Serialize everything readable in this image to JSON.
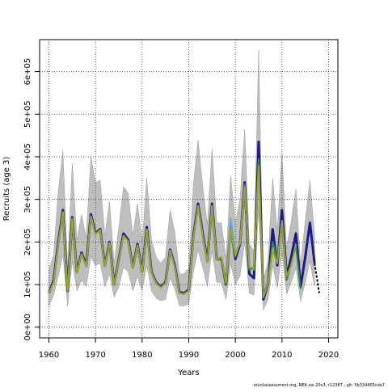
{
  "chart_data": {
    "type": "line",
    "title": "",
    "xlabel": "Years",
    "ylabel": "Recruits (age 3)",
    "footnote": "stockassessment.org,  NEA  sai  20v3,  r12387 ,  git: 5b334405cda7",
    "xlim": [
      1958,
      2022
    ],
    "ylim": [
      -25000,
      675000
    ],
    "x_ticks": [
      1960,
      1970,
      1980,
      1990,
      2000,
      2010,
      2020
    ],
    "x_tick_labels": [
      "1960",
      "1970",
      "1980",
      "1990",
      "2000",
      "2010",
      "2020"
    ],
    "y_ticks": [
      0,
      100000,
      200000,
      300000,
      400000,
      500000,
      600000
    ],
    "y_tick_labels": [
      "0e+00",
      "1e+05",
      "2e+05",
      "3e+05",
      "4e+05",
      "5e+05",
      "6e+05"
    ],
    "grid": true,
    "band_color": "#bebebe",
    "colors": {
      "estimate": "#1a1a8c",
      "retro_blue": "#6aa8e0",
      "retro_green": "#2e8b3a",
      "retro_olive": "#9aa52a",
      "forecast": "#000000"
    },
    "years": [
      1960,
      1961,
      1962,
      1963,
      1964,
      1965,
      1966,
      1967,
      1968,
      1969,
      1970,
      1971,
      1972,
      1973,
      1974,
      1975,
      1976,
      1977,
      1978,
      1979,
      1980,
      1981,
      1982,
      1983,
      1984,
      1985,
      1986,
      1987,
      1988,
      1989,
      1990,
      1991,
      1992,
      1993,
      1994,
      1995,
      1996,
      1997,
      1998,
      1999,
      2000,
      2001,
      2002,
      2003,
      2004,
      2005,
      2006,
      2007,
      2008,
      2009,
      2010,
      2011,
      2012,
      2013,
      2014,
      2015,
      2016,
      2017
    ],
    "estimate": [
      80000,
      110000,
      200000,
      275000,
      85000,
      258000,
      130000,
      175000,
      145000,
      265000,
      220000,
      230000,
      145000,
      200000,
      100000,
      160000,
      220000,
      205000,
      140000,
      195000,
      130000,
      235000,
      130000,
      105000,
      95000,
      105000,
      182000,
      145000,
      82000,
      80000,
      88000,
      215000,
      290000,
      220000,
      155000,
      290000,
      160000,
      160000,
      100000,
      240000,
      160000,
      195000,
      340000,
      125000,
      115000,
      435000,
      65000,
      100000,
      230000,
      145000,
      275000,
      120000,
      165000,
      220000,
      95000,
      165000,
      245000,
      150000
    ],
    "lower": [
      50000,
      75000,
      120000,
      170000,
      50000,
      155000,
      85000,
      110000,
      95000,
      165000,
      145000,
      150000,
      95000,
      125000,
      70000,
      95000,
      140000,
      130000,
      85000,
      120000,
      85000,
      145000,
      85000,
      68000,
      62000,
      65000,
      115000,
      90000,
      50000,
      50000,
      55000,
      130000,
      180000,
      140000,
      95000,
      180000,
      105000,
      105000,
      65000,
      150000,
      100000,
      120000,
      200000,
      80000,
      75000,
      280000,
      40000,
      65000,
      145000,
      92000,
      175000,
      78000,
      105000,
      140000,
      60000,
      105000,
      155000,
      95000
    ],
    "upper": [
      135000,
      170000,
      320000,
      415000,
      140000,
      385000,
      205000,
      265000,
      210000,
      400000,
      340000,
      345000,
      215000,
      295000,
      150000,
      235000,
      330000,
      315000,
      215000,
      290000,
      200000,
      350000,
      205000,
      165000,
      150000,
      165000,
      275000,
      225000,
      125000,
      125000,
      140000,
      335000,
      440000,
      330000,
      240000,
      420000,
      245000,
      245000,
      160000,
      355000,
      245000,
      300000,
      465000,
      195000,
      180000,
      650000,
      110000,
      155000,
      350000,
      225000,
      410000,
      185000,
      250000,
      325000,
      145000,
      250000,
      345000,
      215000
    ],
    "series": [
      {
        "name": "",
        "values": [
          80000,
          105000,
          195000,
          270000,
          85000,
          255000,
          128000,
          172000,
          142000,
          260000,
          218000,
          228000,
          143000,
          198000,
          98000,
          158000,
          215000,
          202000,
          138000,
          192000,
          128000,
          230000,
          128000,
          103000,
          93000,
          103000,
          180000,
          142000,
          80000,
          78000,
          86000,
          210000,
          285000,
          215000,
          152000,
          285000,
          158000,
          158000,
          102000,
          255000,
          175000,
          195000,
          330000,
          140000,
          135000,
          390000
        ]
      },
      {
        "name": "",
        "values": [
          80000,
          105000,
          195000,
          270000,
          85000,
          255000,
          128000,
          172000,
          142000,
          260000,
          218000,
          228000,
          143000,
          198000,
          98000,
          158000,
          215000,
          202000,
          138000,
          192000,
          128000,
          230000,
          128000,
          103000,
          93000,
          103000,
          180000,
          142000,
          80000,
          78000,
          86000,
          210000,
          285000,
          215000,
          152000,
          280000,
          158000,
          158000,
          100000,
          225000,
          165000,
          200000,
          335000,
          135000,
          140000,
          395000,
          75000,
          105000,
          200000,
          160000,
          240000,
          110000,
          150000,
          190000,
          90000
        ]
      },
      {
        "name": "",
        "values": [
          80000,
          105000,
          195000,
          270000,
          85000,
          255000,
          128000,
          172000,
          142000,
          260000,
          218000,
          228000,
          143000,
          198000,
          98000,
          158000,
          215000,
          202000,
          138000,
          192000,
          128000,
          230000,
          128000,
          103000,
          93000,
          103000,
          180000,
          142000,
          80000,
          78000,
          86000,
          210000,
          285000,
          215000,
          152000,
          285000,
          158000,
          165000,
          105000,
          230000,
          168000,
          198000,
          330000,
          140000,
          140000,
          380000,
          70000,
          100000,
          180000,
          150000,
          250000,
          120000,
          145000,
          195000
        ]
      }
    ],
    "forecast": {
      "x": [
        2017,
        2018
      ],
      "values": [
        150000,
        80000
      ]
    }
  }
}
